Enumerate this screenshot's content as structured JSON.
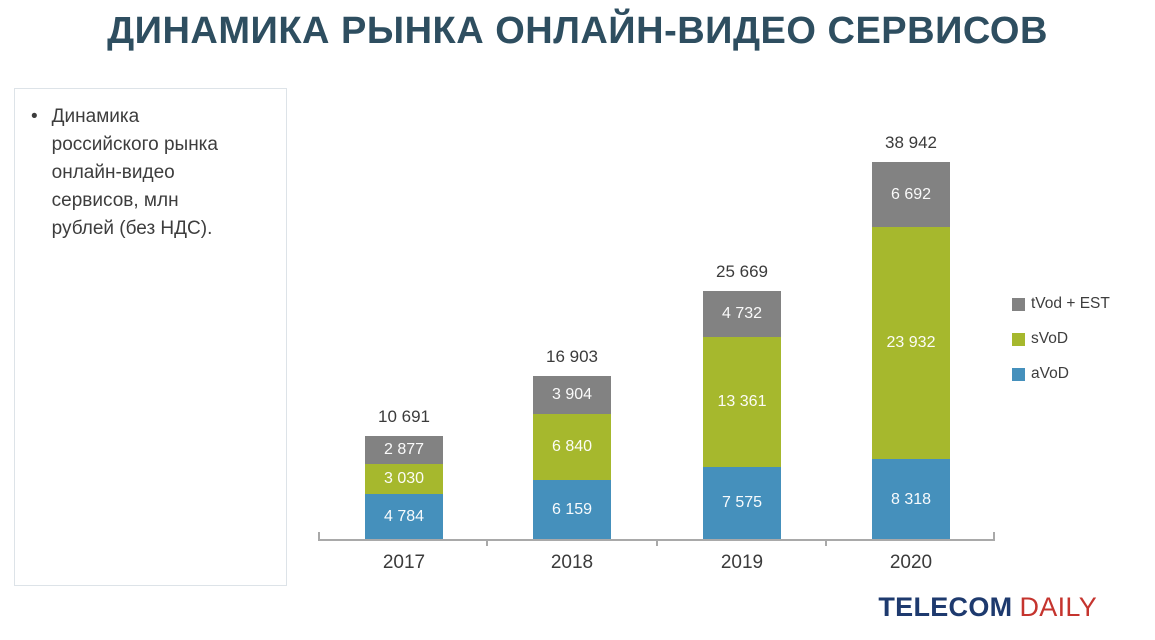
{
  "title": "ДИНАМИКА РЫНКА ОНЛАЙН-ВИДЕО СЕРВИСОВ",
  "title_color": "#2e4e60",
  "note": {
    "bullet": "•",
    "text": "Динамика российского рынка онлайн-видео сервисов, млн рублей (без НДС)."
  },
  "chart_data": {
    "type": "bar",
    "stacked": true,
    "title": "",
    "xlabel": "",
    "ylabel": "млн рублей (без НДС)",
    "grid": false,
    "legend_position": "right",
    "ylim": [
      0,
      42000
    ],
    "categories": [
      "2017",
      "2018",
      "2019",
      "2020"
    ],
    "series": [
      {
        "name": "aVoD",
        "color": "#4590bc",
        "values": [
          4784,
          6159,
          7575,
          8318
        ],
        "labels": [
          "4 784",
          "6 159",
          "7 575",
          "8 318"
        ]
      },
      {
        "name": "sVoD",
        "color": "#a6b82d",
        "values": [
          3030,
          6840,
          13361,
          23932
        ],
        "labels": [
          "3 030",
          "6 840",
          "13 361",
          "23 932"
        ]
      },
      {
        "name": "tVod + EST",
        "color": "#828282",
        "values": [
          2877,
          3904,
          4732,
          6692
        ],
        "labels": [
          "2 877",
          "3 904",
          "4 732",
          "6 692"
        ]
      }
    ],
    "totals": [
      10691,
      16903,
      25669,
      38942
    ],
    "total_labels": [
      "10 691",
      "16 903",
      "25 669",
      "38 942"
    ],
    "legend_order_top_to_bottom": [
      "tVod + EST",
      "sVoD",
      "aVoD"
    ]
  },
  "logo": {
    "part1": "TELECOM",
    "part1_color": "#1e3a6e",
    "part2": "DAILY",
    "part2_color": "#c5342e"
  }
}
